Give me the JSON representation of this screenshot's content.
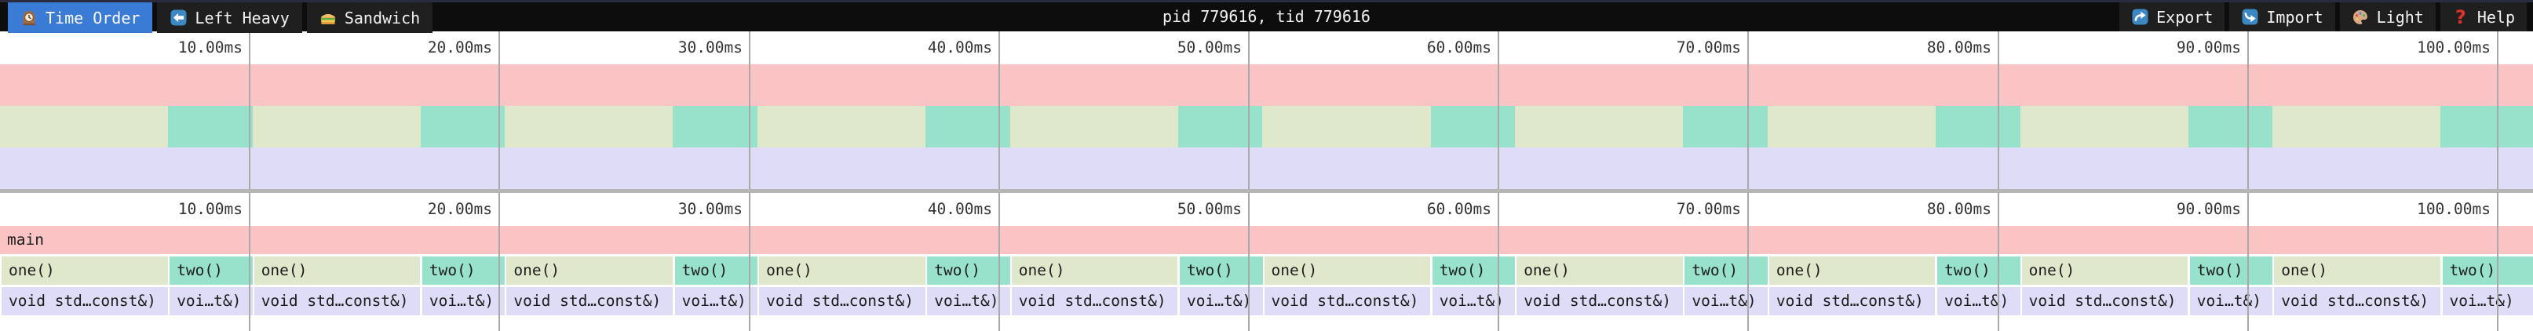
{
  "header": {
    "tabs": [
      {
        "label": "Time Order",
        "icon": "clock-icon",
        "selected": true
      },
      {
        "label": "Left Heavy",
        "icon": "left-arrow-icon",
        "selected": false
      },
      {
        "label": "Sandwich",
        "icon": "sandwich-icon",
        "selected": false
      }
    ],
    "title": "pid 779616, tid 779616",
    "actions": [
      {
        "label": "Export",
        "icon": "export-arrow-icon"
      },
      {
        "label": "Import",
        "icon": "import-arrow-icon"
      },
      {
        "label": "Light",
        "icon": "palette-icon"
      },
      {
        "label": "Help",
        "icon": "question-mark-icon"
      }
    ]
  },
  "ruler": {
    "tick_labels": [
      "10.00ms",
      "20.00ms",
      "30.00ms",
      "40.00ms",
      "50.00ms",
      "60.00ms",
      "70.00ms",
      "80.00ms",
      "90.00ms",
      "100.00ms"
    ]
  },
  "flamegraph": {
    "root_frame": "main",
    "level1_frames": [
      "one()",
      "two()"
    ],
    "level2_frames": [
      "void std…const&)",
      "voi…t&)"
    ],
    "colors": {
      "main": "#fbc4c4",
      "one": "#e0e8cb",
      "two": "#98e2cb",
      "children": "#dfdcf7",
      "gridline": "#a9a9a9",
      "selected_tab": "#3a7bd5"
    }
  },
  "chart_data": {
    "type": "flamechart",
    "title": "pid 779616, tid 779616",
    "x_axis": {
      "unit": "ms",
      "tick_interval": 10,
      "visible_range": [
        0,
        101.4
      ]
    },
    "root": {
      "frame": "main",
      "start_ms": 0,
      "end_ms": 101.4
    },
    "repeating_pattern": {
      "period_ms": 10.1,
      "repetitions": 10,
      "children": [
        {
          "frame": "one()",
          "child": "void std…const&)",
          "approx_duration_ms": 6.7
        },
        {
          "frame": "two()",
          "child": "voi…t&)",
          "approx_duration_ms": 3.4
        }
      ]
    }
  }
}
